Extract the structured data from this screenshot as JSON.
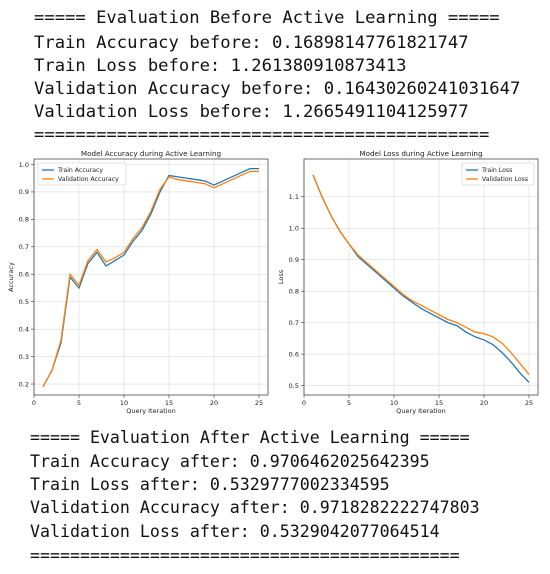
{
  "before_block": {
    "header": "===== Evaluation Before Active Learning =====",
    "lines": [
      "Train Accuracy before: 0.16898147761821747",
      "Train Loss before: 1.261380910873413",
      "Validation Accuracy before: 0.16430260241031647",
      "Validation Loss before: 1.2665491104125977"
    ],
    "divider": "============================================"
  },
  "after_block": {
    "header": "===== Evaluation After Active Learning =====",
    "lines": [
      "Train Accuracy after: 0.9706462025642395",
      "Train Loss after: 0.5329777002334595",
      "Validation Accuracy after: 0.9718282222747803",
      "Validation Loss after: 0.5329042077064514"
    ],
    "divider": "==========================================="
  },
  "colors": {
    "train": "#1f77b4",
    "validation": "#ff7f0e"
  },
  "chart_data": [
    {
      "type": "line",
      "title": "Model Accuracy during Active Learning",
      "xlabel": "Query Iteration",
      "ylabel": "Accuracy",
      "xlim": [
        0,
        26
      ],
      "ylim": [
        0.16,
        1.02
      ],
      "xticks": [
        0,
        5,
        10,
        15,
        20,
        25
      ],
      "yticks": [
        0.2,
        0.3,
        0.4,
        0.5,
        0.6,
        0.7,
        0.8,
        0.9,
        1.0
      ],
      "ytick_labels": [
        "0.2",
        "0.3",
        "0.4",
        "0.5",
        "0.6",
        "0.7",
        "0.8",
        "0.9",
        "1.0"
      ],
      "grid": true,
      "legend_position": "top-left",
      "x": [
        1,
        2,
        3,
        4,
        5,
        6,
        7,
        8,
        9,
        10,
        11,
        12,
        13,
        14,
        15,
        16,
        17,
        18,
        19,
        20,
        21,
        22,
        23,
        24,
        25
      ],
      "series": [
        {
          "name": "Train Accuracy",
          "color": "#1f77b4",
          "values": [
            0.19,
            0.25,
            0.35,
            0.59,
            0.55,
            0.64,
            0.68,
            0.63,
            0.65,
            0.67,
            0.72,
            0.76,
            0.82,
            0.9,
            0.96,
            0.955,
            0.95,
            0.945,
            0.94,
            0.925,
            0.94,
            0.955,
            0.97,
            0.985,
            0.985
          ]
        },
        {
          "name": "Validation Accuracy",
          "color": "#ff7f0e",
          "values": [
            0.19,
            0.25,
            0.36,
            0.6,
            0.56,
            0.65,
            0.69,
            0.645,
            0.66,
            0.68,
            0.73,
            0.77,
            0.83,
            0.91,
            0.955,
            0.945,
            0.94,
            0.935,
            0.93,
            0.915,
            0.93,
            0.945,
            0.96,
            0.975,
            0.975
          ]
        }
      ]
    },
    {
      "type": "line",
      "title": "Model Loss during Active Learning",
      "xlabel": "Query Iteration",
      "ylabel": "Loss",
      "xlim": [
        0,
        26
      ],
      "ylim": [
        0.47,
        1.22
      ],
      "xticks": [
        0,
        5,
        10,
        15,
        20,
        25
      ],
      "yticks": [
        0.5,
        0.6,
        0.7,
        0.8,
        0.9,
        1.0,
        1.1
      ],
      "ytick_labels": [
        "0.5",
        "0.6",
        "0.7",
        "0.8",
        "0.9",
        "1.0",
        "1.1"
      ],
      "grid": true,
      "legend_position": "top-right",
      "x": [
        1,
        2,
        3,
        4,
        5,
        6,
        7,
        8,
        9,
        10,
        11,
        12,
        13,
        14,
        15,
        16,
        17,
        18,
        19,
        20,
        21,
        22,
        23,
        24,
        25
      ],
      "series": [
        {
          "name": "Train Loss",
          "color": "#1f77b4",
          "values": [
            1.17,
            1.1,
            1.04,
            0.99,
            0.95,
            0.91,
            0.885,
            0.86,
            0.835,
            0.81,
            0.785,
            0.765,
            0.745,
            0.73,
            0.715,
            0.7,
            0.69,
            0.67,
            0.655,
            0.645,
            0.63,
            0.605,
            0.575,
            0.54,
            0.51
          ]
        },
        {
          "name": "Validation Loss",
          "color": "#ff7f0e",
          "values": [
            1.17,
            1.1,
            1.04,
            0.99,
            0.95,
            0.915,
            0.89,
            0.865,
            0.84,
            0.815,
            0.79,
            0.77,
            0.755,
            0.74,
            0.725,
            0.71,
            0.7,
            0.685,
            0.67,
            0.665,
            0.655,
            0.635,
            0.605,
            0.57,
            0.535
          ]
        }
      ]
    }
  ]
}
